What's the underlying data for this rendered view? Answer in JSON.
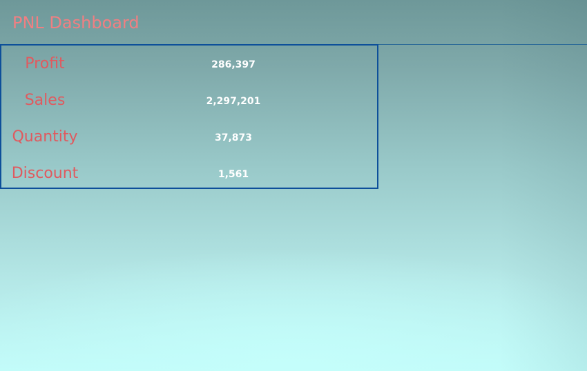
{
  "header": {
    "title": "PNL Dashboard"
  },
  "kpis": [
    {
      "label": "Profit",
      "value": "286,397"
    },
    {
      "label": "Sales",
      "value": "2,297,201"
    },
    {
      "label": "Quantity",
      "value": "37,873"
    },
    {
      "label": "Discount",
      "value": "1,561"
    }
  ],
  "colors": {
    "title": "#f07f82",
    "label": "#e05a5f",
    "value": "#ffffff",
    "panel_border": "#0d4f9a",
    "background_top": "#6e9899",
    "background_bottom": "#c2fbf9"
  }
}
